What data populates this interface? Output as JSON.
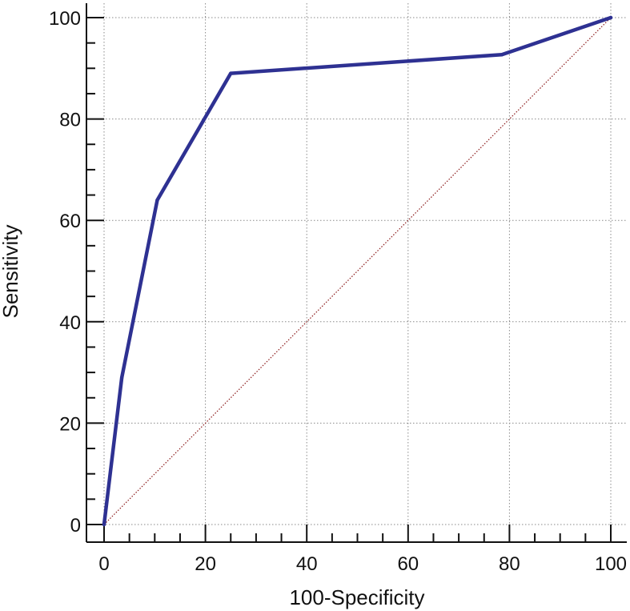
{
  "chart_data": {
    "type": "line",
    "title": "",
    "xlabel": "100-Specificity",
    "ylabel": "Sensitivity",
    "xlim": [
      0,
      100
    ],
    "ylim": [
      0,
      100
    ],
    "xticks": [
      0,
      20,
      40,
      60,
      80,
      100
    ],
    "yticks": [
      0,
      20,
      40,
      60,
      80,
      100
    ],
    "xtick_labels": [
      "0",
      "20",
      "40",
      "60",
      "80",
      "100"
    ],
    "ytick_labels": [
      "0",
      "20",
      "40",
      "60",
      "80",
      "100"
    ],
    "grid": true,
    "legend": "none",
    "series": [
      {
        "role": "roc-curve",
        "color": "#2e3192",
        "x": [
          0,
          3.5,
          10.5,
          25,
          78.5,
          100
        ],
        "y": [
          0,
          29,
          64,
          89,
          92.7,
          100
        ]
      },
      {
        "role": "reference-diagonal",
        "color": "#8b1a1a",
        "x": [
          0,
          100
        ],
        "y": [
          0,
          100
        ]
      }
    ]
  }
}
